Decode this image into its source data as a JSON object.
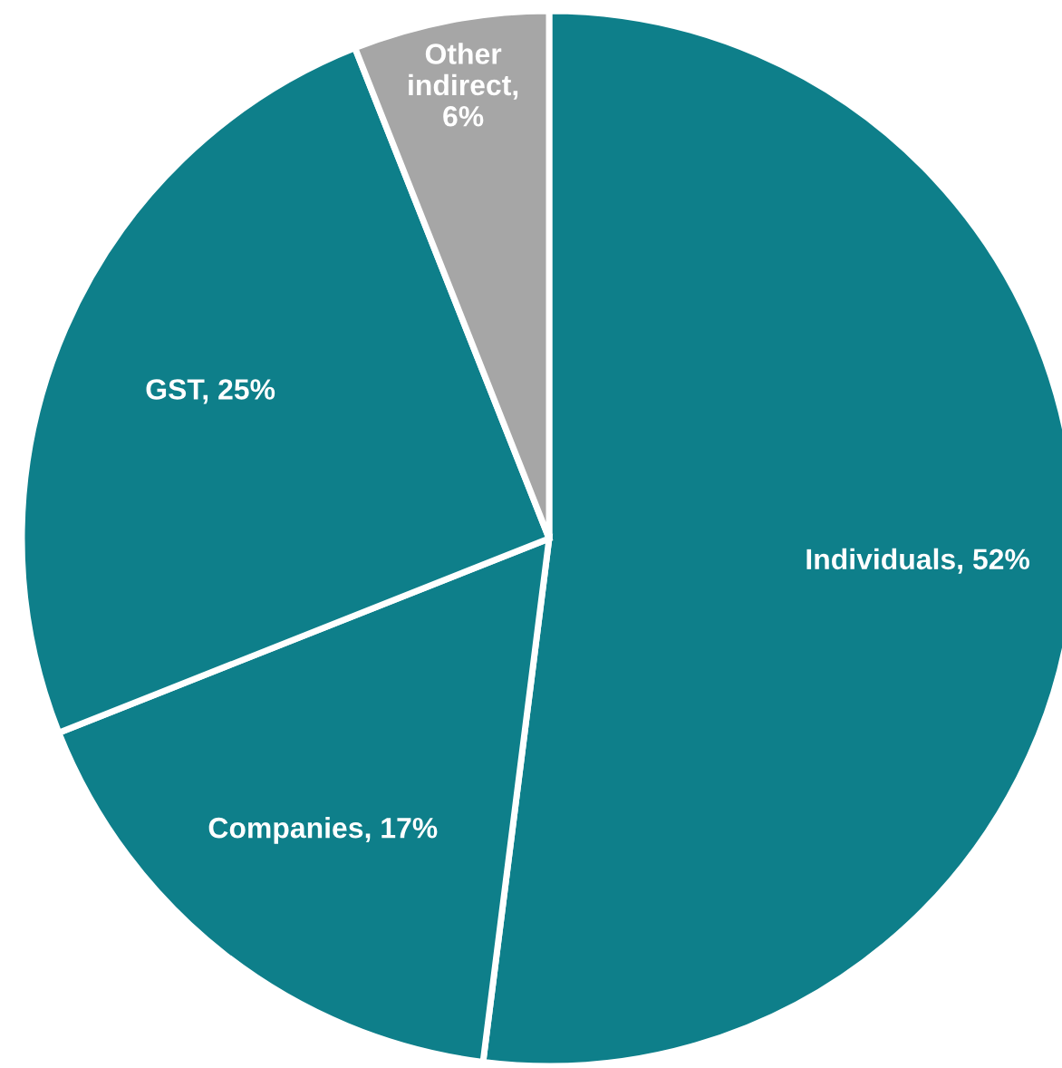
{
  "chart_data": {
    "type": "pie",
    "categories": [
      "Individuals, 52%",
      "Companies, 17%",
      "GST, 25%",
      "Other indirect, 6%"
    ],
    "values": [
      52,
      17,
      25,
      6
    ],
    "colors": [
      "#0e7f8a",
      "#0e7f8a",
      "#0e7f8a",
      "#a6a6a6"
    ],
    "legend": false
  }
}
